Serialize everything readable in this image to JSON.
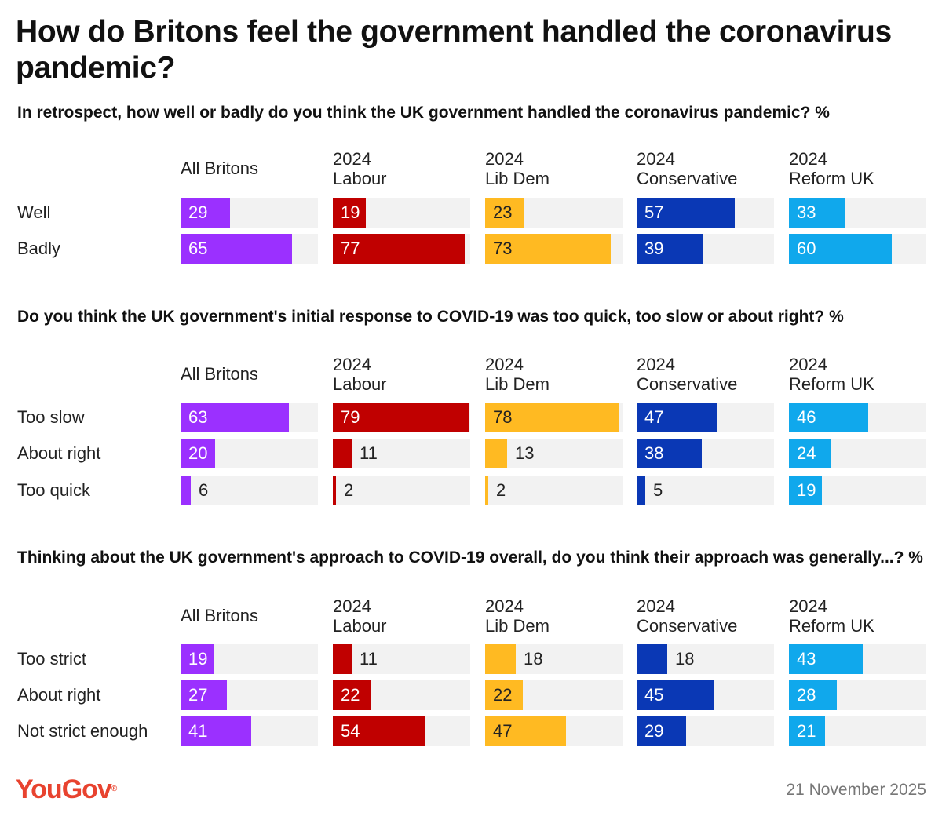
{
  "title": "How do Britons feel the government handled the coronavirus pandemic?",
  "footer": {
    "brand": "YouGov",
    "brand_mark": "®",
    "date": "21 November 2025"
  },
  "colors": {
    "track": "#f2f2f2",
    "All Britons": "#9b30ff",
    "2024 Labour": "#c00000",
    "2024 Lib Dem": "#ffba22",
    "2024 Conservative": "#0a38b5",
    "2024 Reform UK": "#10a8ec"
  },
  "chart_data": [
    {
      "type": "bar",
      "title": "In retrospect, how well or badly do you think the UK government handled the coronavirus pandemic? %",
      "categories": [
        "Well",
        "Badly"
      ],
      "series": [
        {
          "name": "All Britons",
          "header": [
            "All Britons"
          ],
          "values": [
            29,
            65
          ]
        },
        {
          "name": "2024 Labour",
          "header": [
            "2024",
            "Labour"
          ],
          "values": [
            19,
            77
          ]
        },
        {
          "name": "2024 Lib Dem",
          "header": [
            "2024",
            "Lib Dem"
          ],
          "values": [
            23,
            73
          ]
        },
        {
          "name": "2024 Conservative",
          "header": [
            "2024",
            "Conservative"
          ],
          "values": [
            57,
            39
          ]
        },
        {
          "name": "2024 Reform UK",
          "header": [
            "2024",
            "Reform UK"
          ],
          "values": [
            33,
            60
          ]
        }
      ],
      "xlim": [
        0,
        80
      ]
    },
    {
      "type": "bar",
      "title": "Do you think the UK government's initial response to COVID-19 was too quick, too slow or about right? %",
      "categories": [
        "Too slow",
        "About right",
        "Too quick"
      ],
      "series": [
        {
          "name": "All Britons",
          "header": [
            "All Britons"
          ],
          "values": [
            63,
            20,
            6
          ]
        },
        {
          "name": "2024 Labour",
          "header": [
            "2024",
            "Labour"
          ],
          "values": [
            79,
            11,
            2
          ]
        },
        {
          "name": "2024 Lib Dem",
          "header": [
            "2024",
            "Lib Dem"
          ],
          "values": [
            78,
            13,
            2
          ]
        },
        {
          "name": "2024 Conservative",
          "header": [
            "2024",
            "Conservative"
          ],
          "values": [
            47,
            38,
            5
          ]
        },
        {
          "name": "2024 Reform UK",
          "header": [
            "2024",
            "Reform UK"
          ],
          "values": [
            46,
            24,
            19
          ]
        }
      ],
      "xlim": [
        0,
        80
      ]
    },
    {
      "type": "bar",
      "title": "Thinking about the UK government's approach to COVID-19 overall, do you think their approach was generally...? %",
      "categories": [
        "Too strict",
        "About right",
        "Not strict enough"
      ],
      "series": [
        {
          "name": "All Britons",
          "header": [
            "All Britons"
          ],
          "values": [
            19,
            27,
            41
          ]
        },
        {
          "name": "2024 Labour",
          "header": [
            "2024",
            "Labour"
          ],
          "values": [
            11,
            22,
            54
          ]
        },
        {
          "name": "2024 Lib Dem",
          "header": [
            "2024",
            "Lib Dem"
          ],
          "values": [
            18,
            22,
            47
          ]
        },
        {
          "name": "2024 Conservative",
          "header": [
            "2024",
            "Conservative"
          ],
          "values": [
            18,
            45,
            29
          ]
        },
        {
          "name": "2024 Reform UK",
          "header": [
            "2024",
            "Reform UK"
          ],
          "values": [
            43,
            28,
            21
          ]
        }
      ],
      "xlim": [
        0,
        80
      ]
    }
  ]
}
